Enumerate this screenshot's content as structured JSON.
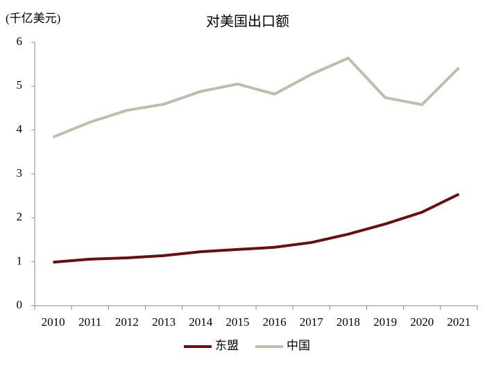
{
  "chart_data": {
    "type": "line",
    "title": "对美国出口额",
    "unit_label": "(千亿美元)",
    "categories": [
      "2010",
      "2011",
      "2012",
      "2013",
      "2014",
      "2015",
      "2016",
      "2017",
      "2018",
      "2019",
      "2020",
      "2021"
    ],
    "series": [
      {
        "name": "东盟",
        "color": "#6b0d0d",
        "values": [
          0.99,
          1.06,
          1.09,
          1.14,
          1.23,
          1.28,
          1.33,
          1.44,
          1.63,
          1.86,
          2.13,
          2.54
        ]
      },
      {
        "name": "中国",
        "color": "#bdbdad",
        "values": [
          3.84,
          4.18,
          4.45,
          4.59,
          4.88,
          5.05,
          4.82,
          5.27,
          5.64,
          4.74,
          4.58,
          5.42
        ]
      }
    ],
    "ylim": [
      0,
      6
    ],
    "yticks": [
      0,
      1,
      2,
      3,
      4,
      5,
      6
    ],
    "legend": "bottom"
  }
}
